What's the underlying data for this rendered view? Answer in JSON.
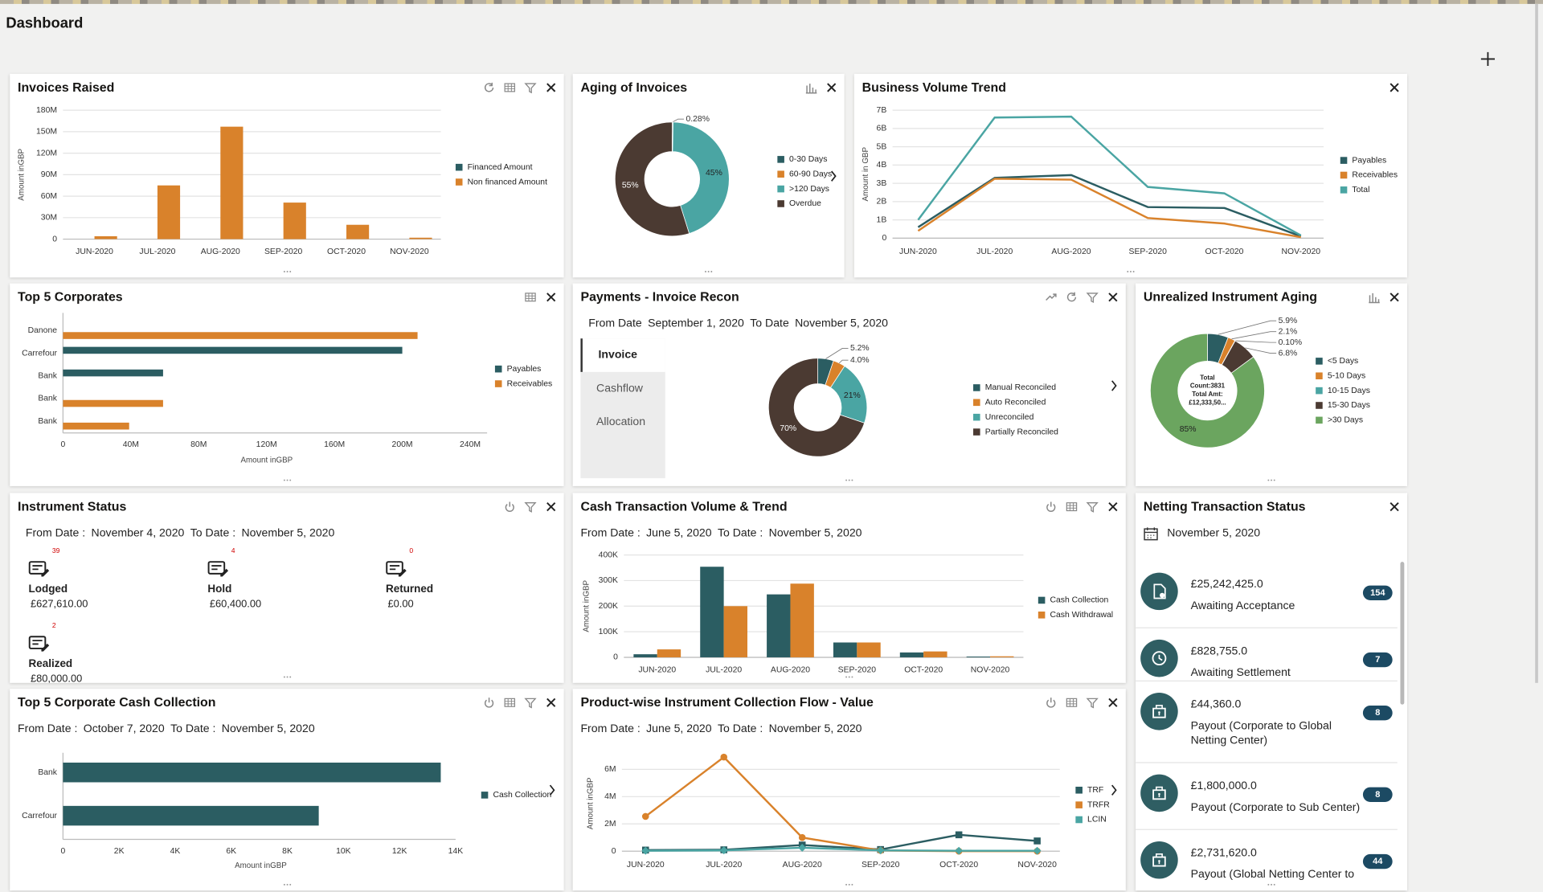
{
  "header": {
    "title": "Dashboard"
  },
  "invoices_raised": {
    "title": "Invoices Raised",
    "chart": {
      "type": "bar",
      "ylabel": "Amount inGBP",
      "categories": [
        "JUN-2020",
        "JUL-2020",
        "AUG-2020",
        "SEP-2020",
        "OCT-2020",
        "NOV-2020"
      ],
      "series": [
        {
          "name": "Financed Amount",
          "color": "#2b5d62",
          "values": [
            0,
            0,
            0,
            0,
            0,
            0
          ]
        },
        {
          "name": "Non financed Amount",
          "color": "#d9822b",
          "values": [
            4000000,
            75000000,
            157000000,
            51000000,
            20000000,
            2000000
          ]
        }
      ],
      "ylim": [
        0,
        180000000
      ],
      "yticks": [
        0,
        {
          "value": 30000000,
          "label": "30M"
        },
        {
          "value": 60000000,
          "label": "60M"
        },
        {
          "value": 90000000,
          "label": "90M"
        },
        {
          "value": 120000000,
          "label": "120M"
        },
        {
          "value": 150000000,
          "label": "150M"
        },
        {
          "value": 180000000,
          "label": "180M"
        }
      ],
      "grid": true
    }
  },
  "aging_of_invoices": {
    "title": "Aging of Invoices",
    "chart": {
      "type": "donut",
      "categories": [
        "0-30 Days",
        "60-90 Days",
        ">120 Days",
        "Overdue"
      ],
      "colors": [
        "#2b5d62",
        "#d9822b",
        "#4aa5a3",
        "#4b3a32"
      ],
      "values": [
        0.28,
        0,
        45,
        55
      ],
      "value_labels": [
        "0.28%",
        null,
        "45%",
        "55%"
      ]
    }
  },
  "business_volume_trend": {
    "title": "Business Volume Trend",
    "chart": {
      "type": "line",
      "ylabel": "Amount in GBP",
      "categories": [
        "JUN-2020",
        "JUL-2020",
        "AUG-2020",
        "SEP-2020",
        "OCT-2020",
        "NOV-2020"
      ],
      "series": [
        {
          "name": "Payables",
          "color": "#2b5d62",
          "values": [
            600000000,
            3300000000,
            3450000000,
            1700000000,
            1650000000,
            100000000
          ]
        },
        {
          "name": "Receivables",
          "color": "#d9822b",
          "values": [
            400000000,
            3250000000,
            3200000000,
            1100000000,
            800000000,
            50000000
          ]
        },
        {
          "name": "Total",
          "color": "#4aa5a3",
          "values": [
            1000000000,
            6600000000,
            6650000000,
            2800000000,
            2450000000,
            150000000
          ]
        }
      ],
      "ylim": [
        0,
        7000000000
      ],
      "yticks": [
        0,
        {
          "value": 1000000000,
          "label": "1B"
        },
        {
          "value": 2000000000,
          "label": "2B"
        },
        {
          "value": 3000000000,
          "label": "3B"
        },
        {
          "value": 4000000000,
          "label": "4B"
        },
        {
          "value": 5000000000,
          "label": "5B"
        },
        {
          "value": 6000000000,
          "label": "6B"
        },
        {
          "value": 7000000000,
          "label": "7B"
        }
      ],
      "grid": true
    }
  },
  "top_corporates": {
    "title": "Top 5 Corporates",
    "chart": {
      "type": "hbar",
      "xlabel": "Amount inGBP",
      "categories": [
        "Danone",
        "Carrefour",
        "Bank",
        "Bank",
        "Bank"
      ],
      "series": [
        {
          "name": "Payables",
          "color": "#2b5d62",
          "values": [
            0,
            200000000,
            59000000,
            0,
            0
          ]
        },
        {
          "name": "Receivables",
          "color": "#d9822b",
          "values": [
            209000000,
            0,
            0,
            59000000,
            39000000
          ]
        }
      ],
      "xlim": [
        0,
        250000000
      ],
      "xticks": [
        0,
        {
          "value": 40000000,
          "label": "40M"
        },
        {
          "value": 80000000,
          "label": "80M"
        },
        {
          "value": 120000000,
          "label": "120M"
        },
        {
          "value": 160000000,
          "label": "160M"
        },
        {
          "value": 200000000,
          "label": "200M"
        },
        {
          "value": 240000000,
          "label": "240M"
        }
      ],
      "grid": false
    }
  },
  "payments_recon": {
    "title": "Payments - Invoice Recon",
    "from_label": "From Date",
    "from": "September 1, 2020",
    "to_label": "To Date",
    "to": "November 5, 2020",
    "tabs": [
      "Invoice",
      "Cashflow",
      "Allocation"
    ],
    "chart": {
      "type": "donut",
      "categories": [
        "Manual Reconciled",
        "Auto Reconciled",
        "Unreconciled",
        "Partially Reconciled"
      ],
      "colors": [
        "#2b5d62",
        "#d9822b",
        "#4aa5a3",
        "#4b3a32"
      ],
      "values": [
        5.2,
        4.0,
        21,
        70
      ],
      "value_labels": [
        "5.2%",
        "4.0%",
        "21%",
        "70%"
      ]
    }
  },
  "unrealized_aging": {
    "title": "Unrealized Instrument Aging",
    "chart": {
      "type": "donut",
      "categories": [
        "<5 Days",
        "5-10 Days",
        "10-15 Days",
        "15-30 Days",
        ">30 Days"
      ],
      "colors": [
        "#2b5d62",
        "#d9822b",
        "#4aa5a3",
        "#4b3a32",
        "#6ba55f"
      ],
      "values": [
        5.9,
        2.1,
        0.1,
        6.8,
        85
      ],
      "value_labels": [
        "5.9%",
        "2.1%",
        "0.10%",
        "6.8%",
        "85%"
      ],
      "center_text": [
        "Total",
        "Count:3831",
        "Total Amt:",
        "£12,333,50..."
      ]
    }
  },
  "instrument_status": {
    "title": "Instrument Status",
    "from_label": "From Date :",
    "from": "November 4, 2020",
    "to_label": "To Date :",
    "to": "November 5, 2020",
    "items": [
      {
        "label": "Lodged",
        "count": 39,
        "amount": "£627,610.00"
      },
      {
        "label": "Hold",
        "count": 4,
        "amount": "£60,400.00"
      },
      {
        "label": "Returned",
        "count": 0,
        "amount": "£0.00"
      },
      {
        "label": "Realized",
        "count": 2,
        "amount": "£80,000.00"
      }
    ]
  },
  "cash_transaction": {
    "title": "Cash Transaction Volume & Trend",
    "from_label": "From Date :",
    "from": "June 5, 2020",
    "to_label": "To Date :",
    "to": "November 5, 2020",
    "chart": {
      "type": "bar",
      "ylabel": "Amount inGBP",
      "categories": [
        "JUN-2020",
        "JUL-2020",
        "AUG-2020",
        "SEP-2020",
        "OCT-2020",
        "NOV-2020"
      ],
      "series": [
        {
          "name": "Cash Collection",
          "color": "#2b5d62",
          "values": [
            12000,
            354000,
            246000,
            58000,
            19000,
            3000
          ]
        },
        {
          "name": "Cash Withdrawal",
          "color": "#d9822b",
          "values": [
            31000,
            200000,
            288000,
            58000,
            23000,
            4000
          ]
        }
      ],
      "ylim": [
        0,
        400000
      ],
      "yticks": [
        0,
        {
          "value": 100000,
          "label": "100K"
        },
        {
          "value": 200000,
          "label": "200K"
        },
        {
          "value": 300000,
          "label": "300K"
        },
        {
          "value": 400000,
          "label": "400K"
        }
      ],
      "grid": true
    }
  },
  "netting_status": {
    "title": "Netting Transaction Status",
    "date": "November 5, 2020",
    "items": [
      {
        "amount": "£25,242,425.0",
        "label": "Awaiting Acceptance",
        "count": 154
      },
      {
        "amount": "£828,755.0",
        "label": "Awaiting Settlement",
        "count": 7
      },
      {
        "amount": "£44,360.0",
        "label": "Payout (Corporate to Global Netting Center)",
        "count": 8
      },
      {
        "amount": "£1,800,000.0",
        "label": "Payout (Corporate to Sub Center)",
        "count": 8
      },
      {
        "amount": "£2,731,620.0",
        "label": "Payout (Global Netting Center to",
        "count": 44
      }
    ]
  },
  "cash_collection": {
    "title": "Top 5 Corporate Cash Collection",
    "from_label": "From Date :",
    "from": "October 7, 2020",
    "to_label": "To Date :",
    "to": "November 5, 2020",
    "chart": {
      "type": "hbar",
      "xlabel": "Amount inGBP",
      "categories": [
        "Bank",
        "Carrefour"
      ],
      "series": [
        {
          "name": "Cash Collection",
          "color": "#2b5d62",
          "values": [
            13470,
            9120
          ]
        }
      ],
      "xlim": [
        0,
        14000
      ],
      "xticks": [
        0,
        {
          "value": 2000,
          "label": "2K"
        },
        {
          "value": 4000,
          "label": "4K"
        },
        {
          "value": 6000,
          "label": "6K"
        },
        {
          "value": 8000,
          "label": "8K"
        },
        {
          "value": 10000,
          "label": "10K"
        },
        {
          "value": 12000,
          "label": "12K"
        },
        {
          "value": 14000,
          "label": "14K"
        }
      ],
      "grid": false
    }
  },
  "product_flow": {
    "title": "Product-wise Instrument Collection Flow - Value",
    "from_label": "From Date :",
    "from": "June 5, 2020",
    "to_label": "To Date :",
    "to": "November 5, 2020",
    "chart": {
      "type": "line",
      "ylabel": "Amount inGBP",
      "categories": [
        "JUN-2020",
        "JUL-2020",
        "AUG-2020",
        "SEP-2020",
        "OCT-2020",
        "NOV-2020"
      ],
      "series": [
        {
          "name": "TRF",
          "color": "#2b5d62",
          "marker": "square",
          "values": [
            80000,
            100000,
            450000,
            120000,
            1200000,
            750000
          ]
        },
        {
          "name": "TRFR",
          "color": "#d9822b",
          "marker": "circle",
          "values": [
            2550000,
            6900000,
            1000000,
            50000,
            0,
            0
          ]
        },
        {
          "name": "LCIN",
          "color": "#4aa5a3",
          "marker": "diamond",
          "values": [
            30000,
            60000,
            250000,
            60000,
            30000,
            30000
          ]
        }
      ],
      "ylim": [
        0,
        7000000
      ],
      "yticks": [
        0,
        {
          "value": 2000000,
          "label": "2M"
        },
        {
          "value": 4000000,
          "label": "4M"
        },
        {
          "value": 6000000,
          "label": "6M"
        }
      ],
      "grid": true
    }
  }
}
